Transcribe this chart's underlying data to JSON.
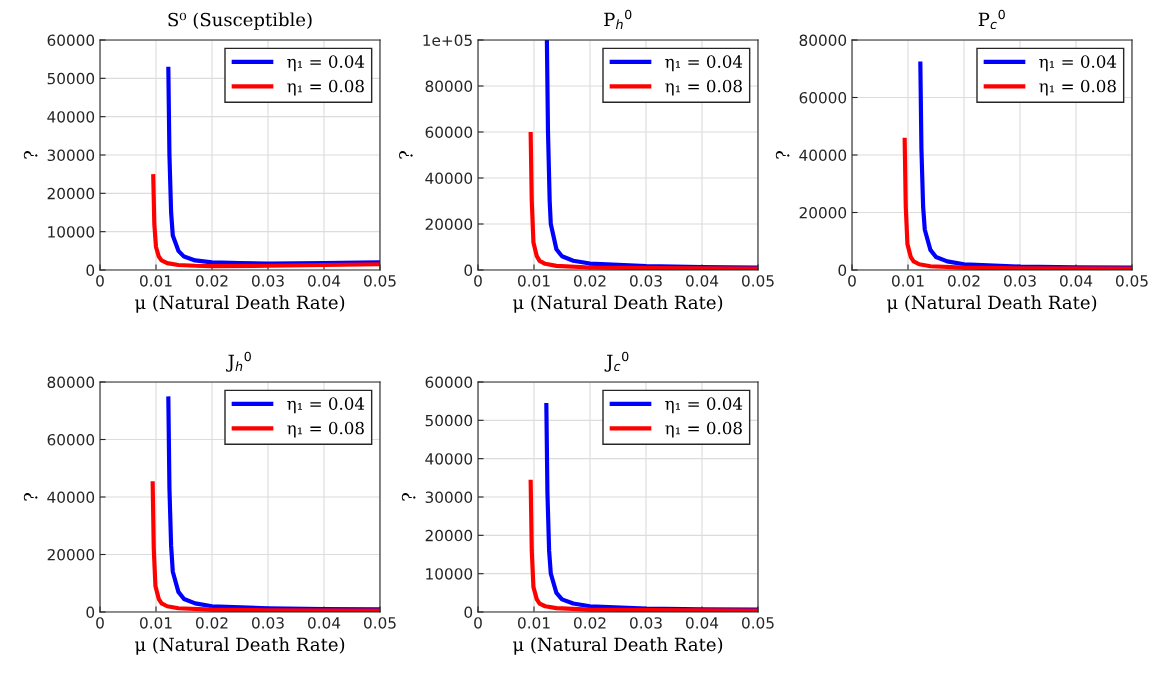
{
  "chart_data": [
    {
      "type": "line",
      "title": "S⁰ (Susceptible)",
      "xlabel": "μ (Natural Death Rate)",
      "ylabel": "?",
      "xlim": [
        0,
        0.05
      ],
      "xticks": [
        0,
        0.01,
        0.02,
        0.03,
        0.04,
        0.05
      ],
      "ylim": [
        0,
        60000
      ],
      "yticks": [
        0,
        10000,
        20000,
        30000,
        40000,
        50000,
        60000
      ],
      "grid": true,
      "legend": "top right",
      "series": [
        {
          "name": "η₁ = 0.04",
          "color": "#0000ff",
          "x": [
            0.0122,
            0.0124,
            0.0127,
            0.013,
            0.014,
            0.015,
            0.017,
            0.02,
            0.025,
            0.03,
            0.04,
            0.05
          ],
          "values": [
            53000,
            30000,
            15000,
            9000,
            5000,
            3500,
            2500,
            2000,
            1800,
            1700,
            1800,
            2000
          ]
        },
        {
          "name": "η₁ = 0.08",
          "color": "#ff0000",
          "x": [
            0.0095,
            0.0097,
            0.01,
            0.0105,
            0.011,
            0.012,
            0.014,
            0.017,
            0.02,
            0.03,
            0.04,
            0.05
          ],
          "values": [
            25000,
            12000,
            6000,
            3500,
            2500,
            1800,
            1300,
            1100,
            1000,
            1100,
            1300,
            1500
          ]
        }
      ]
    },
    {
      "type": "line",
      "title": "P$_{h}$$^{0}$",
      "xlabel": "μ (Natural Death Rate)",
      "ylabel": "?",
      "xlim": [
        0,
        0.05
      ],
      "xticks": [
        0,
        0.01,
        0.02,
        0.03,
        0.04,
        0.05
      ],
      "ylim": [
        0,
        100000
      ],
      "yticks": [
        0,
        20000,
        40000,
        60000,
        80000,
        {
          "value": 100000,
          "label": "1e+05"
        }
      ],
      "grid": true,
      "legend": "top right",
      "series": [
        {
          "name": "η₁ = 0.04",
          "color": "#0000ff",
          "x": [
            0.0123,
            0.0125,
            0.0128,
            0.013,
            0.014,
            0.015,
            0.017,
            0.02,
            0.03,
            0.04,
            0.05
          ],
          "values": [
            100000,
            60000,
            30000,
            20000,
            9000,
            6000,
            4000,
            2800,
            1700,
            1300,
            1100
          ]
        },
        {
          "name": "η₁ = 0.08",
          "color": "#ff0000",
          "x": [
            0.0094,
            0.0096,
            0.0099,
            0.0105,
            0.011,
            0.012,
            0.014,
            0.02,
            0.03,
            0.05
          ],
          "values": [
            60000,
            30000,
            12000,
            6000,
            4000,
            2700,
            1800,
            1100,
            800,
            600
          ]
        }
      ]
    },
    {
      "type": "line",
      "title": "P$_{c}$$^{0}$",
      "xlabel": "μ (Natural Death Rate)",
      "ylabel": "?",
      "xlim": [
        0,
        0.05
      ],
      "xticks": [
        0,
        0.01,
        0.02,
        0.03,
        0.04,
        0.05
      ],
      "ylim": [
        0,
        80000
      ],
      "yticks": [
        0,
        20000,
        40000,
        60000,
        80000
      ],
      "grid": true,
      "legend": "top right",
      "series": [
        {
          "name": "η₁ = 0.04",
          "color": "#0000ff",
          "x": [
            0.0122,
            0.0124,
            0.0127,
            0.013,
            0.014,
            0.015,
            0.017,
            0.02,
            0.03,
            0.04,
            0.05
          ],
          "values": [
            72500,
            42000,
            22000,
            14000,
            7000,
            4500,
            3000,
            2000,
            1200,
            900,
            800
          ]
        },
        {
          "name": "η₁ = 0.08",
          "color": "#ff0000",
          "x": [
            0.0094,
            0.0096,
            0.0099,
            0.0105,
            0.011,
            0.012,
            0.014,
            0.02,
            0.03,
            0.05
          ],
          "values": [
            46000,
            22000,
            9000,
            4500,
            3000,
            2000,
            1300,
            800,
            600,
            500
          ]
        }
      ]
    },
    {
      "type": "line",
      "title": "J$_{h}$$^{0}$",
      "xlabel": "μ (Natural Death Rate)",
      "ylabel": "?",
      "xlim": [
        0,
        0.05
      ],
      "xticks": [
        0,
        0.01,
        0.02,
        0.03,
        0.04,
        0.05
      ],
      "ylim": [
        0,
        80000
      ],
      "yticks": [
        0,
        20000,
        40000,
        60000,
        80000
      ],
      "grid": true,
      "legend": "top right",
      "series": [
        {
          "name": "η₁ = 0.04",
          "color": "#0000ff",
          "x": [
            0.0122,
            0.0124,
            0.0127,
            0.013,
            0.014,
            0.015,
            0.017,
            0.02,
            0.03,
            0.04,
            0.05
          ],
          "values": [
            75000,
            43000,
            23000,
            14000,
            7000,
            4500,
            3000,
            2000,
            1300,
            1000,
            900
          ]
        },
        {
          "name": "η₁ = 0.08",
          "color": "#ff0000",
          "x": [
            0.0094,
            0.0096,
            0.0099,
            0.0105,
            0.011,
            0.012,
            0.014,
            0.02,
            0.03,
            0.05
          ],
          "values": [
            45500,
            22000,
            9000,
            4500,
            3000,
            2000,
            1300,
            800,
            600,
            500
          ]
        }
      ]
    },
    {
      "type": "line",
      "title": "J$_{c}$$^{0}$",
      "xlabel": "μ (Natural Death Rate)",
      "ylabel": "?",
      "xlim": [
        0,
        0.05
      ],
      "xticks": [
        0,
        0.01,
        0.02,
        0.03,
        0.04,
        0.05
      ],
      "ylim": [
        0,
        60000
      ],
      "yticks": [
        0,
        10000,
        20000,
        30000,
        40000,
        50000,
        60000
      ],
      "grid": true,
      "legend": "top right",
      "series": [
        {
          "name": "η₁ = 0.04",
          "color": "#0000ff",
          "x": [
            0.0122,
            0.0124,
            0.0127,
            0.013,
            0.014,
            0.015,
            0.017,
            0.02,
            0.03,
            0.04,
            0.05
          ],
          "values": [
            54500,
            31000,
            16000,
            10000,
            5000,
            3300,
            2200,
            1500,
            900,
            700,
            600
          ]
        },
        {
          "name": "η₁ = 0.08",
          "color": "#ff0000",
          "x": [
            0.0094,
            0.0096,
            0.0099,
            0.0105,
            0.011,
            0.012,
            0.014,
            0.02,
            0.03,
            0.05
          ],
          "values": [
            34500,
            16000,
            6500,
            3300,
            2200,
            1500,
            1000,
            600,
            500,
            400
          ]
        }
      ]
    }
  ]
}
